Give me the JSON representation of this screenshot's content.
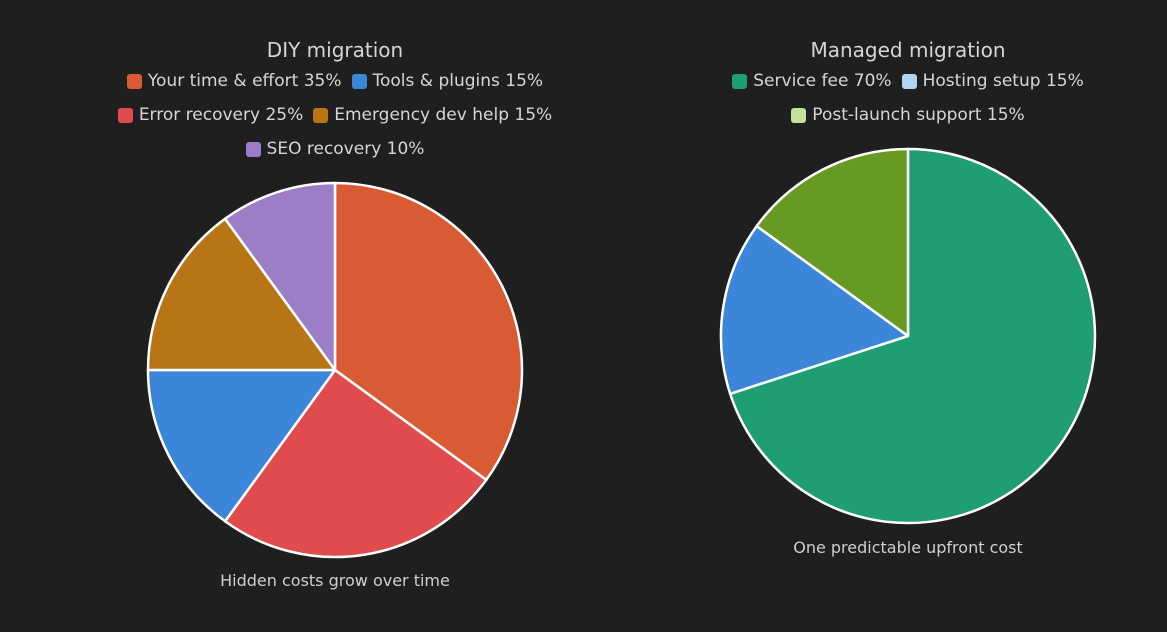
{
  "chart_data": [
    {
      "type": "pie",
      "title": "DIY migration",
      "caption": "Hidden costs grow over time",
      "slices": [
        {
          "label": "Your time & effort 35%",
          "value": 35,
          "color": "#d95b33"
        },
        {
          "label": "Tools & plugins 15%",
          "value": 15,
          "color": "#3b86d9"
        },
        {
          "label": "Error recovery 25%",
          "value": 25,
          "color": "#e04b4d"
        },
        {
          "label": "Emergency dev help 15%",
          "value": 15,
          "color": "#b87516"
        },
        {
          "label": "SEO recovery 10%",
          "value": 10,
          "color": "#9b7ec6"
        }
      ],
      "draw_order": [
        0,
        2,
        1,
        3,
        4
      ],
      "legend": "top"
    },
    {
      "type": "pie",
      "title": "Managed migration",
      "caption": "One predictable upfront cost",
      "slices": [
        {
          "label": "Service fee 70%",
          "value": 70,
          "color": "#1f9e74"
        },
        {
          "label": "Hosting setup 15%",
          "value": 15,
          "color": "#b3d3f2",
          "pie_color": "#3b86d9"
        },
        {
          "label": "Post-launch support 15%",
          "value": 15,
          "color": "#c5e09a",
          "pie_color": "#669a23"
        }
      ],
      "draw_order": [
        0,
        1,
        2
      ],
      "legend": "top"
    }
  ]
}
